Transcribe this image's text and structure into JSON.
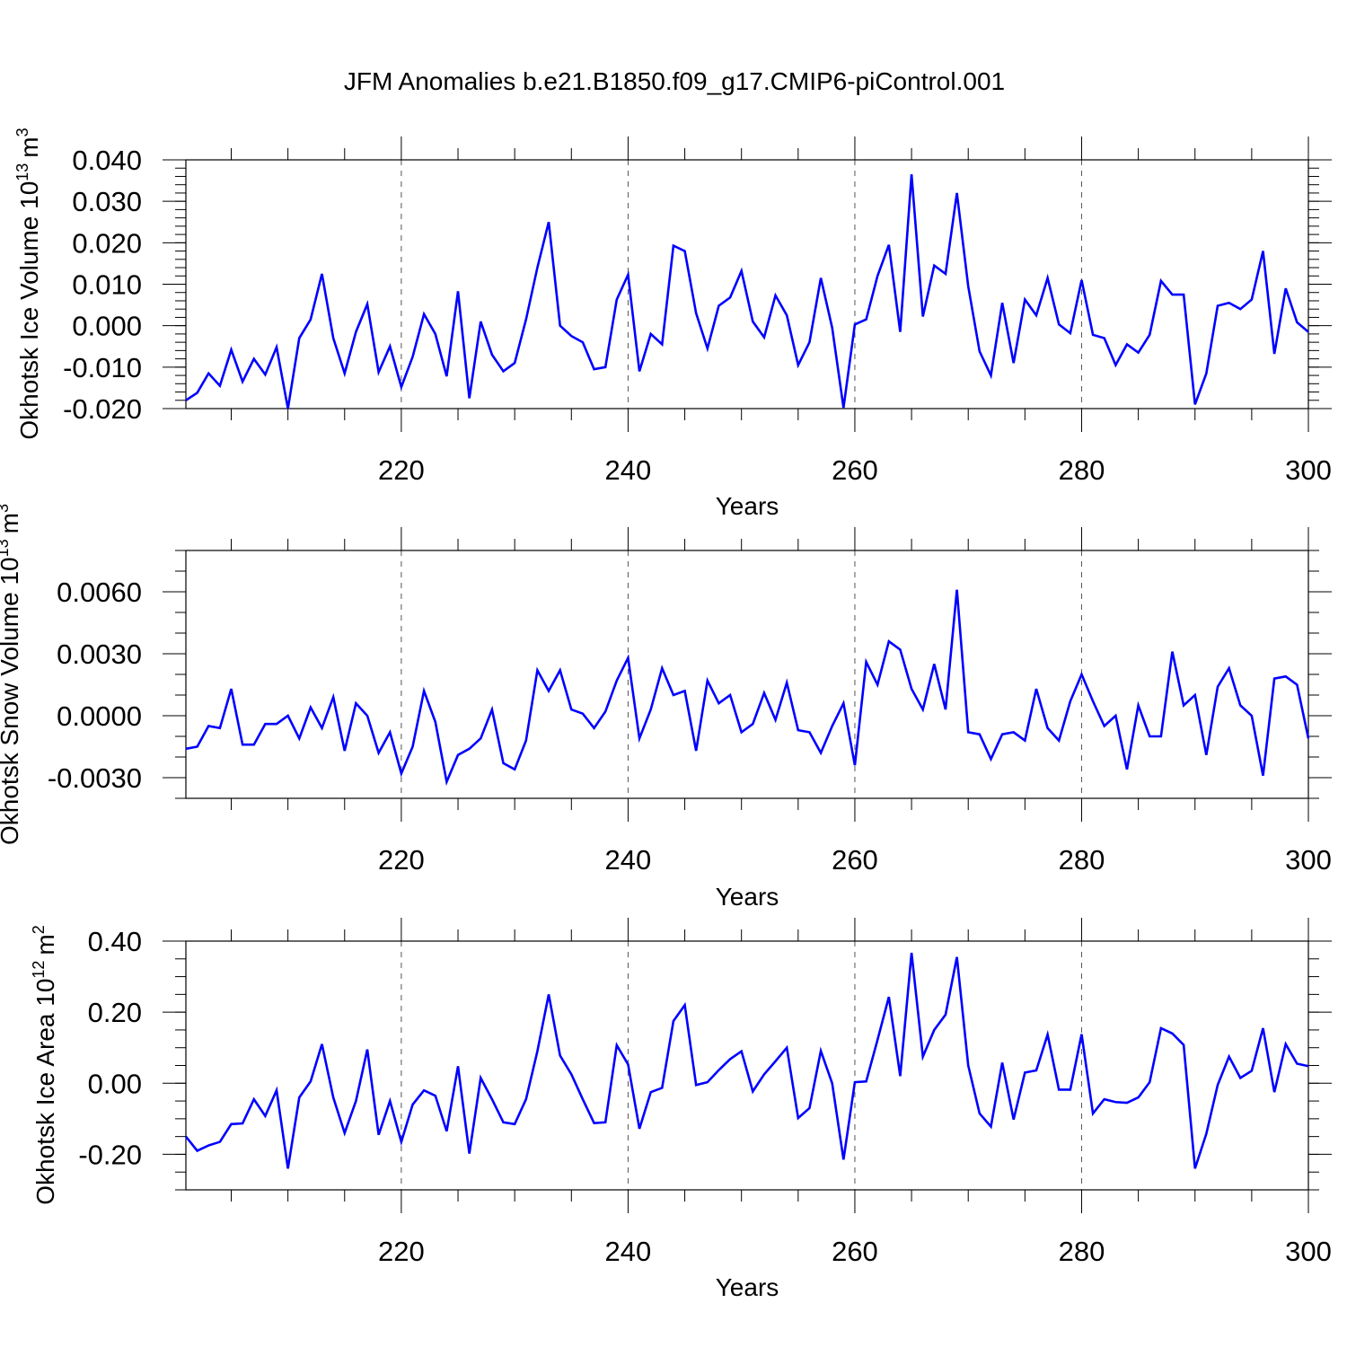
{
  "chart_data": {
    "type": "line",
    "title": "JFM Anomalies b.e21.B1850.f09_g17.CMIP6-piControl.001",
    "line_color": "#0000ff",
    "x": [
      201,
      202,
      203,
      204,
      205,
      206,
      207,
      208,
      209,
      210,
      211,
      212,
      213,
      214,
      215,
      216,
      217,
      218,
      219,
      220,
      221,
      222,
      223,
      224,
      225,
      226,
      227,
      228,
      229,
      230,
      231,
      232,
      233,
      234,
      235,
      236,
      237,
      238,
      239,
      240,
      241,
      242,
      243,
      244,
      245,
      246,
      247,
      248,
      249,
      250,
      251,
      252,
      253,
      254,
      255,
      256,
      257,
      258,
      259,
      260,
      261,
      262,
      263,
      264,
      265,
      266,
      267,
      268,
      269,
      270,
      271,
      272,
      273,
      274,
      275,
      276,
      277,
      278,
      279,
      280,
      281,
      282,
      283,
      284,
      285,
      286,
      287,
      288,
      289,
      290,
      291,
      292,
      293,
      294,
      295,
      296,
      297,
      298,
      299,
      300
    ],
    "panels": [
      {
        "ylabel_main": "Okhotsk Ice Volume 10",
        "ylabel_exp": "13",
        "ylabel_unit": "m",
        "ylabel_unit_exp": "3",
        "xlabel": "Years",
        "xlim": [
          201,
          300
        ],
        "ylim": [
          -0.02,
          0.04
        ],
        "yticks": [
          -0.02,
          -0.01,
          0.0,
          0.01,
          0.02,
          0.03,
          0.04
        ],
        "ytick_labels": [
          "-0.020",
          "-0.010",
          "0.000",
          "0.010",
          "0.020",
          "0.030",
          "0.040"
        ],
        "yminor_step": 0.002,
        "xticks": [
          220,
          240,
          260,
          280,
          300
        ],
        "xtick_labels": [
          "220",
          "240",
          "260",
          "280",
          "300"
        ],
        "values": [
          -0.018,
          -0.0162,
          -0.0115,
          -0.0145,
          -0.0058,
          -0.0135,
          -0.008,
          -0.0118,
          -0.0052,
          -0.02,
          -0.003,
          0.0015,
          0.0125,
          -0.003,
          -0.0115,
          -0.0015,
          0.0052,
          -0.0112,
          -0.005,
          -0.0148,
          -0.0075,
          0.0028,
          -0.002,
          -0.0122,
          0.0083,
          -0.0175,
          0.001,
          -0.007,
          -0.011,
          -0.009,
          0.0015,
          0.014,
          0.025,
          0.0,
          -0.0025,
          -0.004,
          -0.0105,
          -0.01,
          0.0063,
          0.0123,
          -0.011,
          -0.002,
          -0.0045,
          0.0193,
          0.018,
          0.003,
          -0.0055,
          0.0048,
          0.0068,
          0.0132,
          0.001,
          -0.0028,
          0.0073,
          0.0025,
          -0.0095,
          -0.004,
          0.0115,
          -0.0005,
          -0.0198,
          0.0003,
          0.0015,
          0.012,
          0.0195,
          -0.0015,
          0.0365,
          0.0022,
          0.0145,
          0.0125,
          0.032,
          0.0095,
          -0.0062,
          -0.012,
          0.0055,
          -0.009,
          0.0063,
          0.0025,
          0.0115,
          0.0003,
          -0.0018,
          0.011,
          -0.0022,
          -0.003,
          -0.0095,
          -0.0045,
          -0.0065,
          -0.0022,
          0.0108,
          0.0075,
          0.0075,
          -0.019,
          -0.0115,
          0.0048,
          0.0055,
          0.004,
          0.0063,
          0.018,
          -0.0068,
          0.009,
          0.0008,
          -0.0015
        ]
      },
      {
        "ylabel_main": "Okhotsk Snow Volume 10",
        "ylabel_exp": "13",
        "ylabel_unit": "m",
        "ylabel_unit_exp": "3",
        "xlabel": "Years",
        "xlim": [
          201,
          300
        ],
        "ylim": [
          -0.004,
          0.008
        ],
        "yticks": [
          -0.003,
          0.0,
          0.003,
          0.006
        ],
        "ytick_labels": [
          "-0.0030",
          "0.0000",
          "0.0030",
          "0.0060"
        ],
        "yminor_step": 0.001,
        "xticks": [
          220,
          240,
          260,
          280,
          300
        ],
        "xtick_labels": [
          "220",
          "240",
          "260",
          "280",
          "300"
        ],
        "values": [
          -0.0016,
          -0.0015,
          -0.0005,
          -0.0006,
          0.0013,
          -0.0014,
          -0.0014,
          -0.0004,
          -0.0004,
          0.0,
          -0.0011,
          0.0004,
          -0.0006,
          0.0009,
          -0.0017,
          0.0006,
          0.0,
          -0.0018,
          -0.0008,
          -0.0028,
          -0.0015,
          0.0012,
          -0.0003,
          -0.0032,
          -0.0019,
          -0.0016,
          -0.0011,
          0.0003,
          -0.0023,
          -0.0026,
          -0.0012,
          0.0022,
          0.0012,
          0.0022,
          0.0003,
          0.0001,
          -0.0006,
          0.0002,
          0.0017,
          0.0028,
          -0.0011,
          0.0003,
          0.0023,
          0.001,
          0.0012,
          -0.0017,
          0.0017,
          0.0006,
          0.001,
          -0.0008,
          -0.0004,
          0.0011,
          -0.0002,
          0.0016,
          -0.0007,
          -0.0008,
          -0.0018,
          -0.0005,
          0.0006,
          -0.0024,
          0.0026,
          0.0015,
          0.0036,
          0.0032,
          0.0013,
          0.0003,
          0.0025,
          0.0003,
          0.0061,
          -0.0008,
          -0.0009,
          -0.0021,
          -0.0009,
          -0.0008,
          -0.0012,
          0.0013,
          -0.0006,
          -0.0012,
          0.0007,
          0.002,
          0.0007,
          -0.0005,
          0.0,
          -0.0026,
          0.0005,
          -0.001,
          -0.001,
          0.0031,
          0.0005,
          0.001,
          -0.0019,
          0.0014,
          0.0023,
          0.0005,
          0.0,
          -0.0029,
          0.0018,
          0.0019,
          0.0015,
          -0.0011
        ]
      },
      {
        "ylabel_main": "Okhotsk Ice Area 10",
        "ylabel_exp": "12",
        "ylabel_unit": "m",
        "ylabel_unit_exp": "2",
        "xlabel": "Years",
        "xlim": [
          201,
          300
        ],
        "ylim": [
          -0.3,
          0.4
        ],
        "yticks": [
          -0.2,
          0.0,
          0.2,
          0.4
        ],
        "ytick_labels": [
          "-0.20",
          "0.00",
          "0.20",
          "0.40"
        ],
        "yminor_step": 0.05,
        "xticks": [
          220,
          240,
          260,
          280,
          300
        ],
        "xtick_labels": [
          "220",
          "240",
          "260",
          "280",
          "300"
        ],
        "values": [
          -0.15,
          -0.19,
          -0.175,
          -0.165,
          -0.115,
          -0.113,
          -0.045,
          -0.092,
          -0.02,
          -0.24,
          -0.04,
          0.005,
          0.11,
          -0.04,
          -0.14,
          -0.05,
          0.095,
          -0.145,
          -0.05,
          -0.165,
          -0.06,
          -0.02,
          -0.035,
          -0.135,
          0.048,
          -0.198,
          0.015,
          -0.045,
          -0.11,
          -0.115,
          -0.045,
          0.09,
          0.25,
          0.078,
          0.025,
          -0.045,
          -0.112,
          -0.11,
          0.107,
          0.053,
          -0.128,
          -0.025,
          -0.013,
          0.175,
          0.22,
          -0.005,
          0.003,
          0.037,
          0.068,
          0.09,
          -0.023,
          0.025,
          0.062,
          0.1,
          -0.098,
          -0.07,
          0.091,
          0.0,
          -0.215,
          0.003,
          0.005,
          0.122,
          0.243,
          0.02,
          0.367,
          0.075,
          0.15,
          0.193,
          0.355,
          0.05,
          -0.085,
          -0.122,
          0.058,
          -0.102,
          0.03,
          0.036,
          0.137,
          -0.018,
          -0.018,
          0.138,
          -0.085,
          -0.045,
          -0.053,
          -0.055,
          -0.04,
          0.003,
          0.155,
          0.14,
          0.108,
          -0.24,
          -0.142,
          -0.005,
          0.075,
          0.015,
          0.035,
          0.155,
          -0.025,
          0.11,
          0.055,
          0.048
        ]
      }
    ]
  }
}
